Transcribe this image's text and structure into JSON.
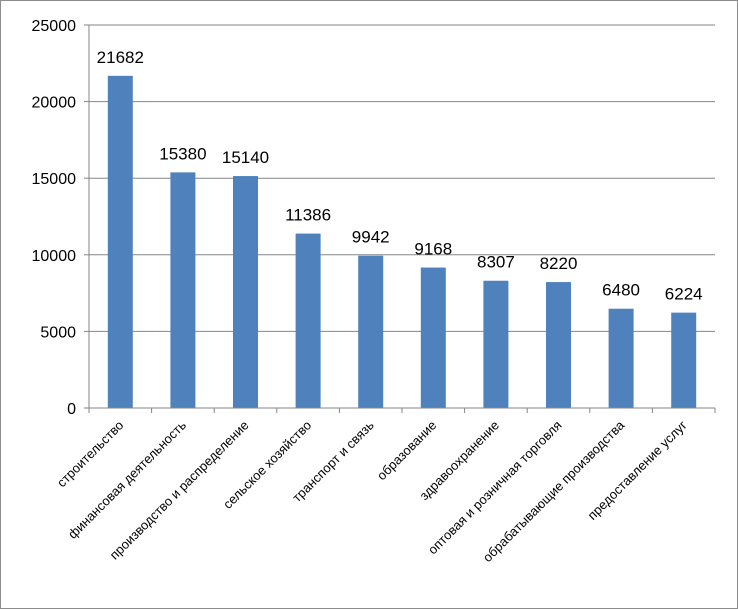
{
  "chart_data": {
    "type": "bar",
    "title": "",
    "xlabel": "",
    "ylabel": "",
    "categories": [
      "строительство",
      "финансовая деятельность",
      "производство и распределение",
      "сельское хозяйство",
      "транспорт и связь",
      "образование",
      "здравоохранение",
      "оптовая и розничная торговля",
      "обрабатывающие производства",
      "предоставление  услуг"
    ],
    "values": [
      21682,
      15380,
      15140,
      11386,
      9942,
      9168,
      8307,
      8220,
      6480,
      6224
    ],
    "data_labels": [
      "21682",
      "15380",
      "15140",
      "11386",
      "9942",
      "9168",
      "8307",
      "8220",
      "6480",
      "6224"
    ],
    "ylim": [
      0,
      25000
    ],
    "yticks": [
      0,
      5000,
      10000,
      15000,
      20000,
      25000
    ],
    "ytick_labels": [
      "0",
      "5000",
      "10000",
      "15000",
      "20000",
      "25000"
    ],
    "grid": true,
    "legend": "none",
    "bar_color": "#4f81bd",
    "grid_color": "#868686"
  }
}
